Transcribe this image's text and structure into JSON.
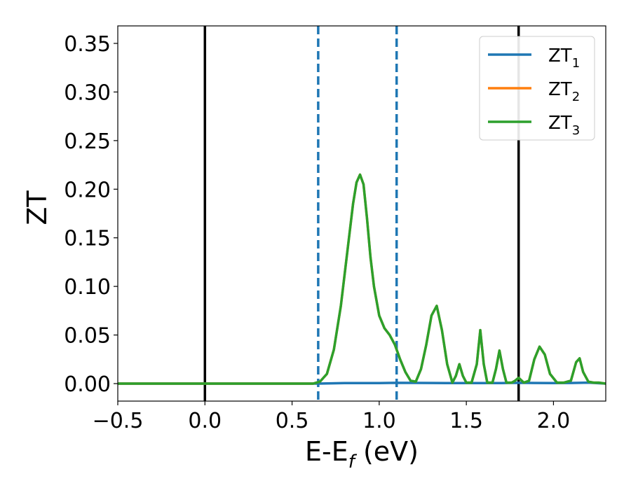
{
  "chart_data": {
    "type": "line",
    "title": "",
    "xlabel": {
      "main": "E-E",
      "sub": "f",
      "suffix": " (eV)"
    },
    "ylabel": "ZT",
    "xlim": [
      -0.5,
      2.3
    ],
    "ylim": [
      -0.018,
      0.368
    ],
    "xticks": [
      -0.5,
      0.0,
      0.5,
      1.0,
      1.5,
      2.0
    ],
    "xtick_labels": [
      "−0.5",
      "0.0",
      "0.5",
      "1.0",
      "1.5",
      "2.0"
    ],
    "yticks": [
      0.0,
      0.05,
      0.1,
      0.15,
      0.2,
      0.25,
      0.3,
      0.35
    ],
    "ytick_labels": [
      "0.00",
      "0.05",
      "0.10",
      "0.15",
      "0.20",
      "0.25",
      "0.30",
      "0.35"
    ],
    "grid": false,
    "legend": "top-right",
    "vlines": [
      {
        "x": 0.0,
        "style": "solid",
        "color": "#000000"
      },
      {
        "x": 0.65,
        "style": "dashed",
        "color": "#1f77b4"
      },
      {
        "x": 1.1,
        "style": "dashed",
        "color": "#1f77b4"
      },
      {
        "x": 1.8,
        "style": "solid",
        "color": "#000000"
      }
    ],
    "series": [
      {
        "name": "ZT",
        "sub": "1",
        "color": "#1f77b4",
        "x": [
          -0.5,
          0.0,
          0.5,
          0.65,
          0.8,
          1.0,
          1.1,
          1.3,
          1.5,
          1.7,
          1.8,
          1.9,
          2.0,
          2.1,
          2.2,
          2.3
        ],
        "y": [
          0.0,
          0.0,
          0.0,
          0.0,
          0.0005,
          0.0005,
          0.0008,
          0.0006,
          0.0005,
          0.0005,
          0.0008,
          0.0006,
          0.0005,
          0.0006,
          0.001,
          0.0
        ]
      },
      {
        "name": "ZT",
        "sub": "2",
        "color": "#ff7f0e",
        "x": [
          -0.5,
          0.0,
          0.5,
          0.62,
          0.66,
          0.7,
          0.74,
          0.78,
          0.82,
          0.85,
          0.87,
          0.89,
          0.91,
          0.93,
          0.95,
          0.97,
          1.0,
          1.03,
          1.06,
          1.09,
          1.12,
          1.15,
          1.18,
          1.21,
          1.24,
          1.27,
          1.3,
          1.33,
          1.36,
          1.39,
          1.42,
          1.44,
          1.46,
          1.48,
          1.5,
          1.53,
          1.56,
          1.58,
          1.6,
          1.62,
          1.65,
          1.67,
          1.69,
          1.71,
          1.73,
          1.76,
          1.78,
          1.8,
          1.83,
          1.86,
          1.89,
          1.92,
          1.95,
          1.98,
          2.02,
          2.06,
          2.1,
          2.13,
          2.15,
          2.17,
          2.2,
          2.23,
          2.26,
          2.3
        ],
        "y": [
          0.0,
          0.0,
          0.0,
          0.0,
          0.002,
          0.01,
          0.035,
          0.08,
          0.14,
          0.185,
          0.207,
          0.215,
          0.205,
          0.17,
          0.13,
          0.1,
          0.07,
          0.057,
          0.05,
          0.04,
          0.025,
          0.012,
          0.003,
          0.002,
          0.015,
          0.04,
          0.07,
          0.08,
          0.055,
          0.02,
          0.001,
          0.008,
          0.02,
          0.008,
          0.001,
          0.001,
          0.02,
          0.055,
          0.02,
          0.001,
          0.001,
          0.015,
          0.034,
          0.015,
          0.001,
          0.001,
          0.003,
          0.006,
          0.001,
          0.003,
          0.025,
          0.038,
          0.03,
          0.01,
          0.001,
          0.001,
          0.003,
          0.022,
          0.026,
          0.012,
          0.002,
          0.001,
          0.001,
          0.0
        ]
      },
      {
        "name": "ZT",
        "sub": "3",
        "color": "#2ca02c",
        "x": [
          -0.5,
          0.0,
          0.5,
          0.62,
          0.66,
          0.7,
          0.74,
          0.78,
          0.82,
          0.85,
          0.87,
          0.89,
          0.91,
          0.93,
          0.95,
          0.97,
          1.0,
          1.03,
          1.06,
          1.09,
          1.12,
          1.15,
          1.18,
          1.21,
          1.24,
          1.27,
          1.3,
          1.33,
          1.36,
          1.39,
          1.42,
          1.44,
          1.46,
          1.48,
          1.5,
          1.53,
          1.56,
          1.58,
          1.6,
          1.62,
          1.65,
          1.67,
          1.69,
          1.71,
          1.73,
          1.76,
          1.78,
          1.8,
          1.83,
          1.86,
          1.89,
          1.92,
          1.95,
          1.98,
          2.02,
          2.06,
          2.1,
          2.13,
          2.15,
          2.17,
          2.2,
          2.23,
          2.26,
          2.3
        ],
        "y": [
          0.0,
          0.0,
          0.0,
          0.0,
          0.002,
          0.01,
          0.035,
          0.08,
          0.14,
          0.185,
          0.207,
          0.215,
          0.205,
          0.17,
          0.13,
          0.1,
          0.07,
          0.057,
          0.05,
          0.04,
          0.025,
          0.012,
          0.003,
          0.002,
          0.015,
          0.04,
          0.07,
          0.08,
          0.055,
          0.02,
          0.001,
          0.008,
          0.02,
          0.008,
          0.001,
          0.001,
          0.02,
          0.055,
          0.02,
          0.001,
          0.001,
          0.015,
          0.034,
          0.015,
          0.001,
          0.001,
          0.003,
          0.006,
          0.001,
          0.003,
          0.025,
          0.038,
          0.03,
          0.01,
          0.001,
          0.001,
          0.003,
          0.022,
          0.026,
          0.012,
          0.002,
          0.001,
          0.001,
          0.0
        ]
      }
    ]
  }
}
